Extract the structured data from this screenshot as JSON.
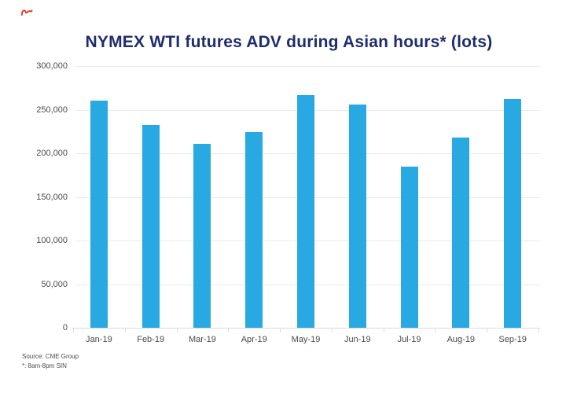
{
  "chart_data": {
    "type": "bar",
    "title": "NYMEX WTI futures ADV during Asian hours* (lots)",
    "categories": [
      "Jan-19",
      "Feb-19",
      "Mar-19",
      "Apr-19",
      "May-19",
      "Jun-19",
      "Jul-19",
      "Aug-19",
      "Sep-19"
    ],
    "values": [
      260000,
      232000,
      211000,
      224000,
      267000,
      256000,
      185000,
      218000,
      262000
    ],
    "xlabel": "",
    "ylabel": "",
    "ylim": [
      0,
      300000
    ],
    "ytick_step": 50000,
    "ytick_labels": [
      "0",
      "50,000",
      "100,000",
      "150,000",
      "200,000",
      "250,000",
      "300,000"
    ],
    "grid": true,
    "legend": "none",
    "colors": {
      "bar": "#29A9E1",
      "title": "#1F2C6E",
      "gridline": "#E9E9E9",
      "axis": "#DCDCDC",
      "tick_label": "#4B4B4B",
      "red_mark": "#E0301E"
    }
  },
  "icons": {
    "red_mark": "red-scribble-mark"
  },
  "footer": {
    "source_line": "Source: CME Group",
    "note_line": "*: 8am-8pm SIN"
  }
}
